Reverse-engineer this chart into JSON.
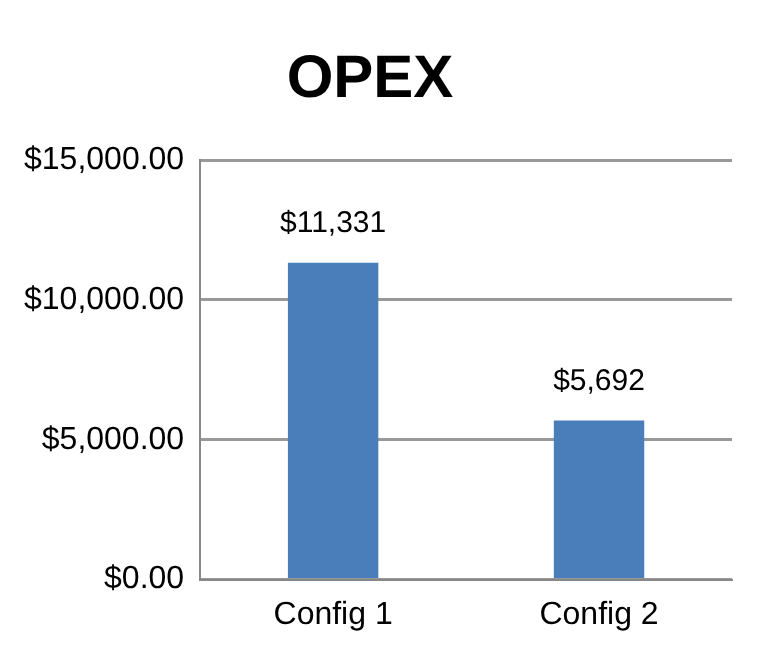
{
  "chart_data": {
    "type": "bar",
    "title": "OPEX",
    "categories": [
      "Config 1",
      "Config 2"
    ],
    "values": [
      11331,
      5692
    ],
    "color": "#4a7ebb",
    "value_labels": [
      "$11,331",
      "$5,692"
    ],
    "ylim": [
      0,
      15000
    ],
    "yticks": [
      {
        "value": 0,
        "label": "$0.00"
      },
      {
        "value": 5000,
        "label": "$5,000.00"
      },
      {
        "value": 10000,
        "label": "$10,000.00"
      },
      {
        "value": 15000,
        "label": "$15,000.00"
      }
    ],
    "grid": "y",
    "legend": false
  }
}
